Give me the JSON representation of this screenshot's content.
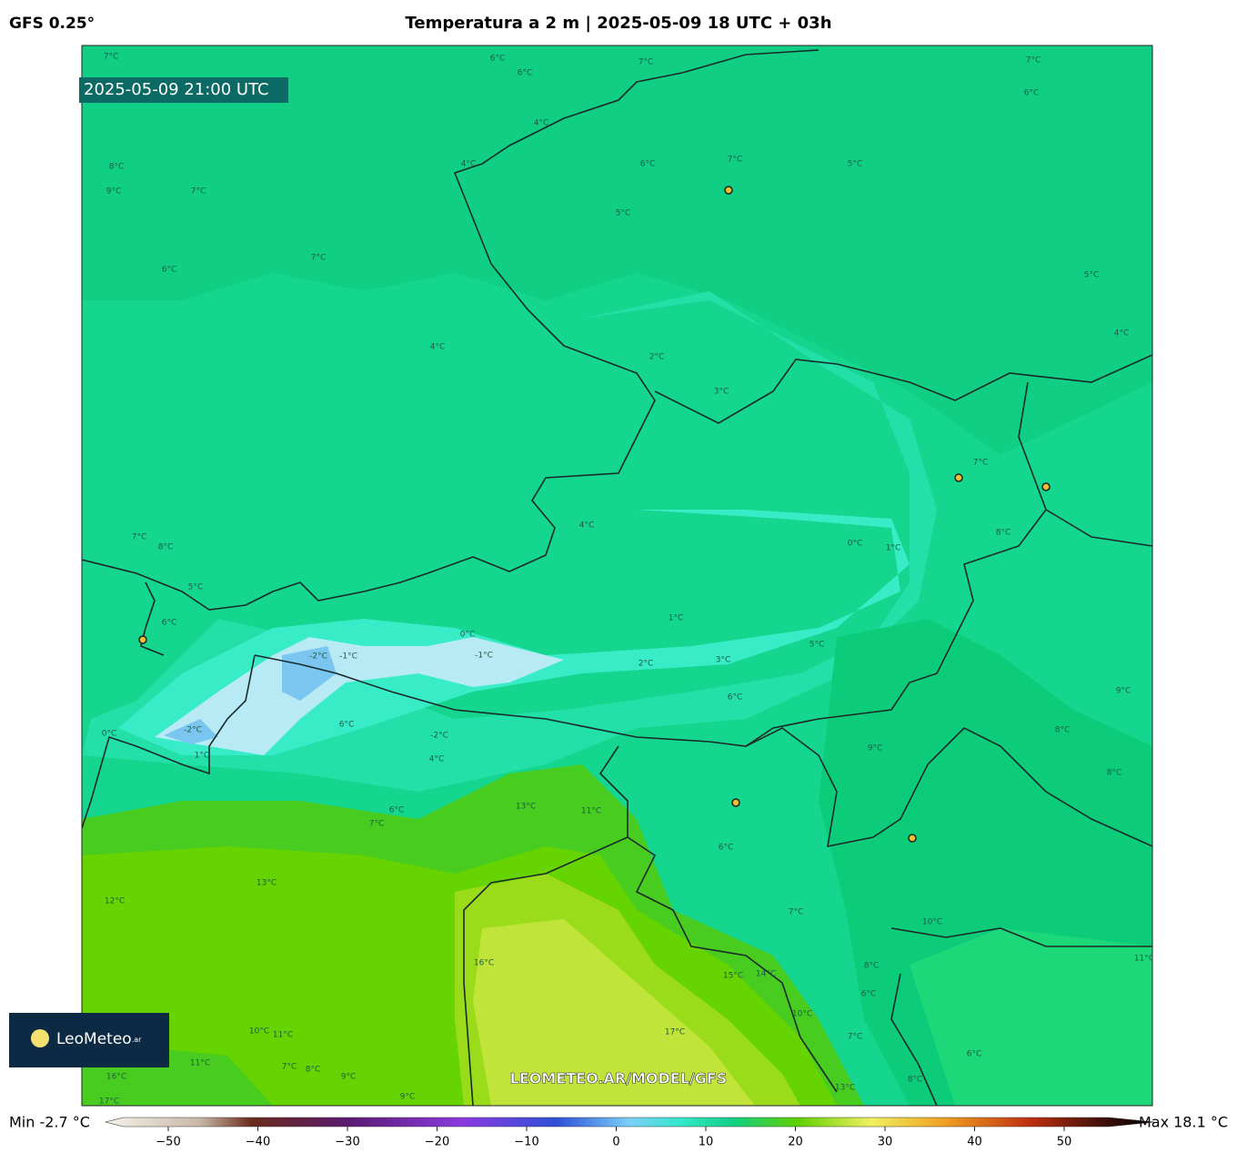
{
  "header": {
    "model": "GFS 0.25°",
    "title": "Temperatura a 2 m | 2025-05-09 18 UTC + 03h"
  },
  "map": {
    "valid_time": "2025-05-09 21:00 UTC",
    "watermark": "LEOMETEO.AR/MODEL/GFS",
    "contour_labels": [
      "7°C",
      "6°C",
      "7°C",
      "6°C",
      "7°C",
      "6°C",
      "5°C",
      "5°C",
      "4°C",
      "4°C",
      "8°C",
      "9°C",
      "7°C",
      "7°C",
      "7°C",
      "6°C",
      "6°C",
      "4°C",
      "2°C",
      "3°C",
      "5°C",
      "4°C",
      "7°C",
      "8°C",
      "0°C",
      "1°C",
      "4°C",
      "1°C",
      "7°C",
      "8°C",
      "5°C",
      "6°C",
      "0°C",
      "-2°C",
      "-1°C",
      "-1°C",
      "2°C",
      "3°C",
      "5°C",
      "6°C",
      "9°C",
      "8°C",
      "0°C",
      "-2°C",
      "1°C",
      "6°C",
      "-2°C",
      "4°C",
      "6°C",
      "7°C",
      "9°C",
      "13°C",
      "11°C",
      "13°C",
      "12°C",
      "6°C",
      "10°C",
      "8°C",
      "16°C",
      "15°C",
      "14°C",
      "17°C",
      "10°C",
      "11°C",
      "10°C",
      "11°C",
      "7°C",
      "8°C",
      "9°C",
      "9°C",
      "16°C",
      "17°C",
      "7°C",
      "8°C",
      "6°C",
      "7°C",
      "6°C",
      "8°C",
      "13°C",
      "11°C"
    ]
  },
  "logo": {
    "text": "LeoMeteo",
    "suffix": ".ar"
  },
  "colorbar": {
    "min_label": "Min -2.7 °C",
    "max_label": "Max 18.1 °C",
    "range": [
      -55,
      55
    ],
    "ticks": [
      {
        "value": -50,
        "label": "−50"
      },
      {
        "value": -40,
        "label": "−40"
      },
      {
        "value": -30,
        "label": "−30"
      },
      {
        "value": -20,
        "label": "−20"
      },
      {
        "value": -10,
        "label": "−10"
      },
      0,
      10,
      20,
      30,
      40,
      50
    ]
  }
}
